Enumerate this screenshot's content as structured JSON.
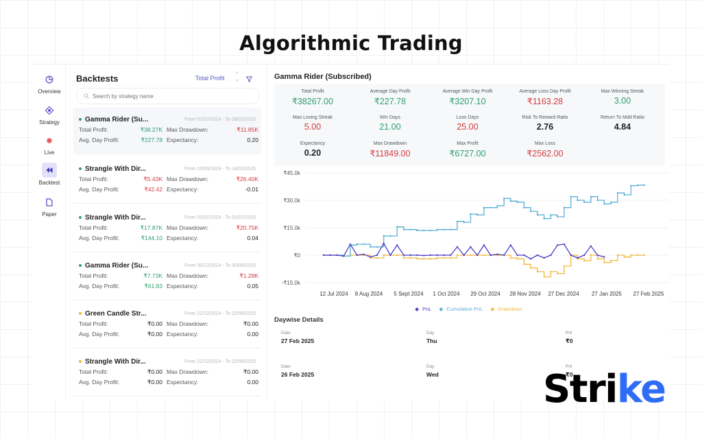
{
  "headline": "Algorithmic Trading",
  "nav": {
    "items": [
      {
        "label": "Overview",
        "icon": "pie-chart-icon"
      },
      {
        "label": "Strategy",
        "icon": "target-icon"
      },
      {
        "label": "Live",
        "icon": "live-dot-icon"
      },
      {
        "label": "Backtest",
        "icon": "rewind-icon",
        "active": true
      },
      {
        "label": "Paper",
        "icon": "document-icon"
      }
    ]
  },
  "backtests": {
    "title": "Backtests",
    "sort_label": "Total Profit",
    "sort_icon": "sort-arrows-icon",
    "filter_icon": "filter-icon",
    "search_placeholder": "Search by strategy name",
    "labels": {
      "total_profit": "Total Profit:",
      "avg_day_profit": "Avg. Day Profit:",
      "max_drawdown": "Max Drawdown:",
      "expectancy": "Expectancy:"
    },
    "cards": [
      {
        "name": "Gamma Rider (Su...",
        "dates": "From 01/07/2024 - To 28/02/2025",
        "status_color": "#2e9e6e",
        "total_profit": "₹38.27K",
        "tp_color": "green",
        "avg_day_profit": "₹227.78",
        "adp_color": "green",
        "max_drawdown": "₹11.85K",
        "md_color": "red",
        "expectancy": "0.20"
      },
      {
        "name": "Strangle With Dir...",
        "dates": "From 10/09/2024 - To 14/03/2025",
        "status_color": "#2e9e6e",
        "total_profit": "₹5.43K",
        "tp_color": "red",
        "avg_day_profit": "₹42.42",
        "adp_color": "red",
        "max_drawdown": "₹26.40K",
        "md_color": "red",
        "expectancy": "-0.01"
      },
      {
        "name": "Strangle With Dir...",
        "dates": "From 01/01/2025 - To 01/07/2025",
        "status_color": "#2e9e6e",
        "total_profit": "₹17.87K",
        "tp_color": "green",
        "avg_day_profit": "₹144.10",
        "adp_color": "green",
        "max_drawdown": "₹20.75K",
        "md_color": "red",
        "expectancy": "0.04"
      },
      {
        "name": "Gamma Rider (Su...",
        "dates": "From 30/12/2024 - To 30/06/2025",
        "status_color": "#2e9e6e",
        "total_profit": "₹7.73K",
        "tp_color": "green",
        "avg_day_profit": "₹61.83",
        "adp_color": "green",
        "max_drawdown": "₹1.28K",
        "md_color": "red",
        "expectancy": "0.05"
      },
      {
        "name": "Green Candle Str...",
        "dates": "From 22/12/2024 - To 22/06/2025",
        "status_color": "#f0b429",
        "total_profit": "₹0.00",
        "tp_color": "dark",
        "avg_day_profit": "₹0.00",
        "adp_color": "dark",
        "max_drawdown": "₹0.00",
        "md_color": "dark",
        "expectancy": "0.00"
      },
      {
        "name": "Strangle With Dir...",
        "dates": "From 22/12/2024 - To 22/06/2025",
        "status_color": "#f0b429",
        "total_profit": "₹0.00",
        "tp_color": "dark",
        "avg_day_profit": "₹0.00",
        "adp_color": "dark",
        "max_drawdown": "₹0.00",
        "md_color": "dark",
        "expectancy": "0.00"
      }
    ]
  },
  "detail": {
    "title": "Gamma Rider (Subscribed)",
    "stats": [
      {
        "label": "Total Profit",
        "value": "₹38267.00",
        "color": "green"
      },
      {
        "label": "Average Day Profit",
        "value": "₹227.78",
        "color": "green"
      },
      {
        "label": "Average Win Day Profit",
        "value": "₹3207.10",
        "color": "green"
      },
      {
        "label": "Average Loss Day Profit",
        "value": "₹1163.28",
        "color": "red"
      },
      {
        "label": "Max Winning Streak",
        "value": "3.00",
        "color": "green"
      },
      {
        "label": "Max Losing Streak",
        "value": "5.00",
        "color": "red"
      },
      {
        "label": "Win Days",
        "value": "21.00",
        "color": "green"
      },
      {
        "label": "Loss Days",
        "value": "25.00",
        "color": "red"
      },
      {
        "label": "Risk To Reward Ratio",
        "value": "2.76",
        "color": "dark"
      },
      {
        "label": "Return To Mdd Ratio",
        "value": "4.84",
        "color": "dark"
      },
      {
        "label": "Expectancy",
        "value": "0.20",
        "color": "dark"
      },
      {
        "label": "Max Drawdown",
        "value": "₹11849.00",
        "color": "red"
      },
      {
        "label": "Max Profit",
        "value": "₹6727.00",
        "color": "green"
      },
      {
        "label": "Max Loss",
        "value": "₹2562.00",
        "color": "red"
      }
    ],
    "legend": {
      "pnl": "PnL",
      "cumulative": "Cumulative PnL",
      "drawdown": "Drawdown"
    },
    "daywise": {
      "title": "Daywise Details",
      "columns": [
        "Date",
        "Day",
        "Pnl"
      ],
      "rows": [
        {
          "date": "27 Feb 2025",
          "day": "Thu",
          "pnl": "₹0"
        },
        {
          "date": "26 Feb 2025",
          "day": "Wed",
          "pnl": "₹0"
        }
      ]
    }
  },
  "colors": {
    "green": "#2e9e6e",
    "red": "#d33a3a",
    "pnl": "#4b3fc6",
    "cumulative": "#5aaed8",
    "drawdown": "#f0b840",
    "accent": "#5c5bb8",
    "logo_accent": "#2f6cf6"
  },
  "chart_data": {
    "type": "line",
    "title": "",
    "xlabel": "",
    "ylabel": "",
    "ylim": [
      -15000,
      45000
    ],
    "y_ticks": [
      "₹45.0k",
      "₹30.0k",
      "₹15.0k",
      "₹0",
      "-₹15.0k"
    ],
    "x_ticks": [
      "12 Jul 2024",
      "8 Aug 2024",
      "5 Sept 2024",
      "1 Oct 2024",
      "29 Oct 2024",
      "28 Nov 2024",
      "27 Dec 2024",
      "27 Jan 2025",
      "27 Feb 2025"
    ],
    "grid": true,
    "legend_position": "bottom",
    "series": [
      {
        "name": "PnL",
        "color": "#4b3fc6",
        "values": [
          0,
          0,
          0,
          -500,
          6000,
          0,
          500,
          -1000,
          0,
          6500,
          0,
          5500,
          0,
          0,
          0,
          -200,
          0,
          0,
          0,
          0,
          4500,
          0,
          4500,
          0,
          5500,
          0,
          500,
          0,
          5500,
          0,
          0,
          -2000,
          0,
          -1500,
          0,
          5500,
          6000,
          0,
          -1500,
          0,
          5000,
          0,
          -1000,
          0,
          5500,
          0,
          5000,
          0
        ]
      },
      {
        "name": "Cumulative PnL",
        "color": "#5aaed8",
        "values": [
          0,
          0,
          0,
          -500,
          5500,
          6000,
          6000,
          4500,
          4500,
          10500,
          10500,
          15500,
          14000,
          14000,
          13500,
          13500,
          13500,
          14000,
          14000,
          14000,
          18500,
          18000,
          22500,
          22000,
          26000,
          26000,
          27000,
          31000,
          29500,
          29000,
          26000,
          24000,
          22000,
          20000,
          22000,
          21000,
          26000,
          32000,
          30000,
          29000,
          32000,
          30000,
          28000,
          29000,
          34000,
          33000,
          38000,
          38267
        ]
      },
      {
        "name": "Drawdown",
        "color": "#f0b840",
        "values": [
          0,
          0,
          0,
          -500,
          0,
          0,
          0,
          -1500,
          -1500,
          0,
          0,
          0,
          -1500,
          -1500,
          -2000,
          -2000,
          -2000,
          -1500,
          -1500,
          -1500,
          0,
          0,
          0,
          0,
          0,
          0,
          0,
          0,
          -1500,
          -2000,
          -5000,
          -7000,
          -9000,
          -11849,
          -9000,
          -10000,
          -6000,
          0,
          -2000,
          -3000,
          0,
          -2000,
          -4000,
          -3000,
          0,
          -1000,
          0,
          0
        ]
      }
    ]
  },
  "logo": {
    "text_main": "Stri",
    "text_accent": "ke"
  }
}
